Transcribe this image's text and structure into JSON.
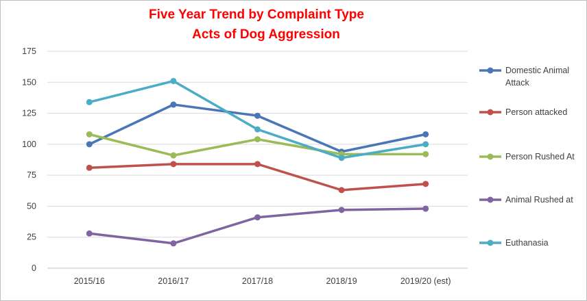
{
  "chart_data": {
    "type": "line",
    "title_lines": [
      "Five Year Trend by Complaint Type",
      "Acts of Dog Aggression"
    ],
    "categories": [
      "2015/16",
      "2016/17",
      "2017/18",
      "2018/19",
      "2019/20 (est)"
    ],
    "ylim": [
      0,
      175
    ],
    "yticks": [
      "0",
      "25",
      "50",
      "75",
      "100",
      "125",
      "150",
      "175"
    ],
    "grid": "horizontal",
    "legend_position": "right",
    "series": [
      {
        "name": "Domestic Animal Attack",
        "name_lines": [
          "Domestic Animal",
          "Attack"
        ],
        "color": "#4a76b8",
        "values": [
          100,
          132,
          123,
          94,
          108
        ]
      },
      {
        "name": "Person attacked",
        "name_lines": [
          "Person attacked"
        ],
        "color": "#c0504d",
        "values": [
          81,
          84,
          84,
          63,
          68
        ]
      },
      {
        "name": "Person Rushed At",
        "name_lines": [
          "Person Rushed At"
        ],
        "color": "#9bbb59",
        "values": [
          108,
          91,
          104,
          92,
          92
        ]
      },
      {
        "name": "Animal Rushed at",
        "name_lines": [
          "Animal Rushed at"
        ],
        "color": "#8064a2",
        "values": [
          28,
          20,
          41,
          47,
          48
        ]
      },
      {
        "name": "Euthanasia",
        "name_lines": [
          "Euthanasia"
        ],
        "color": "#4bacc6",
        "values": [
          134,
          151,
          112,
          89,
          100
        ]
      }
    ]
  }
}
